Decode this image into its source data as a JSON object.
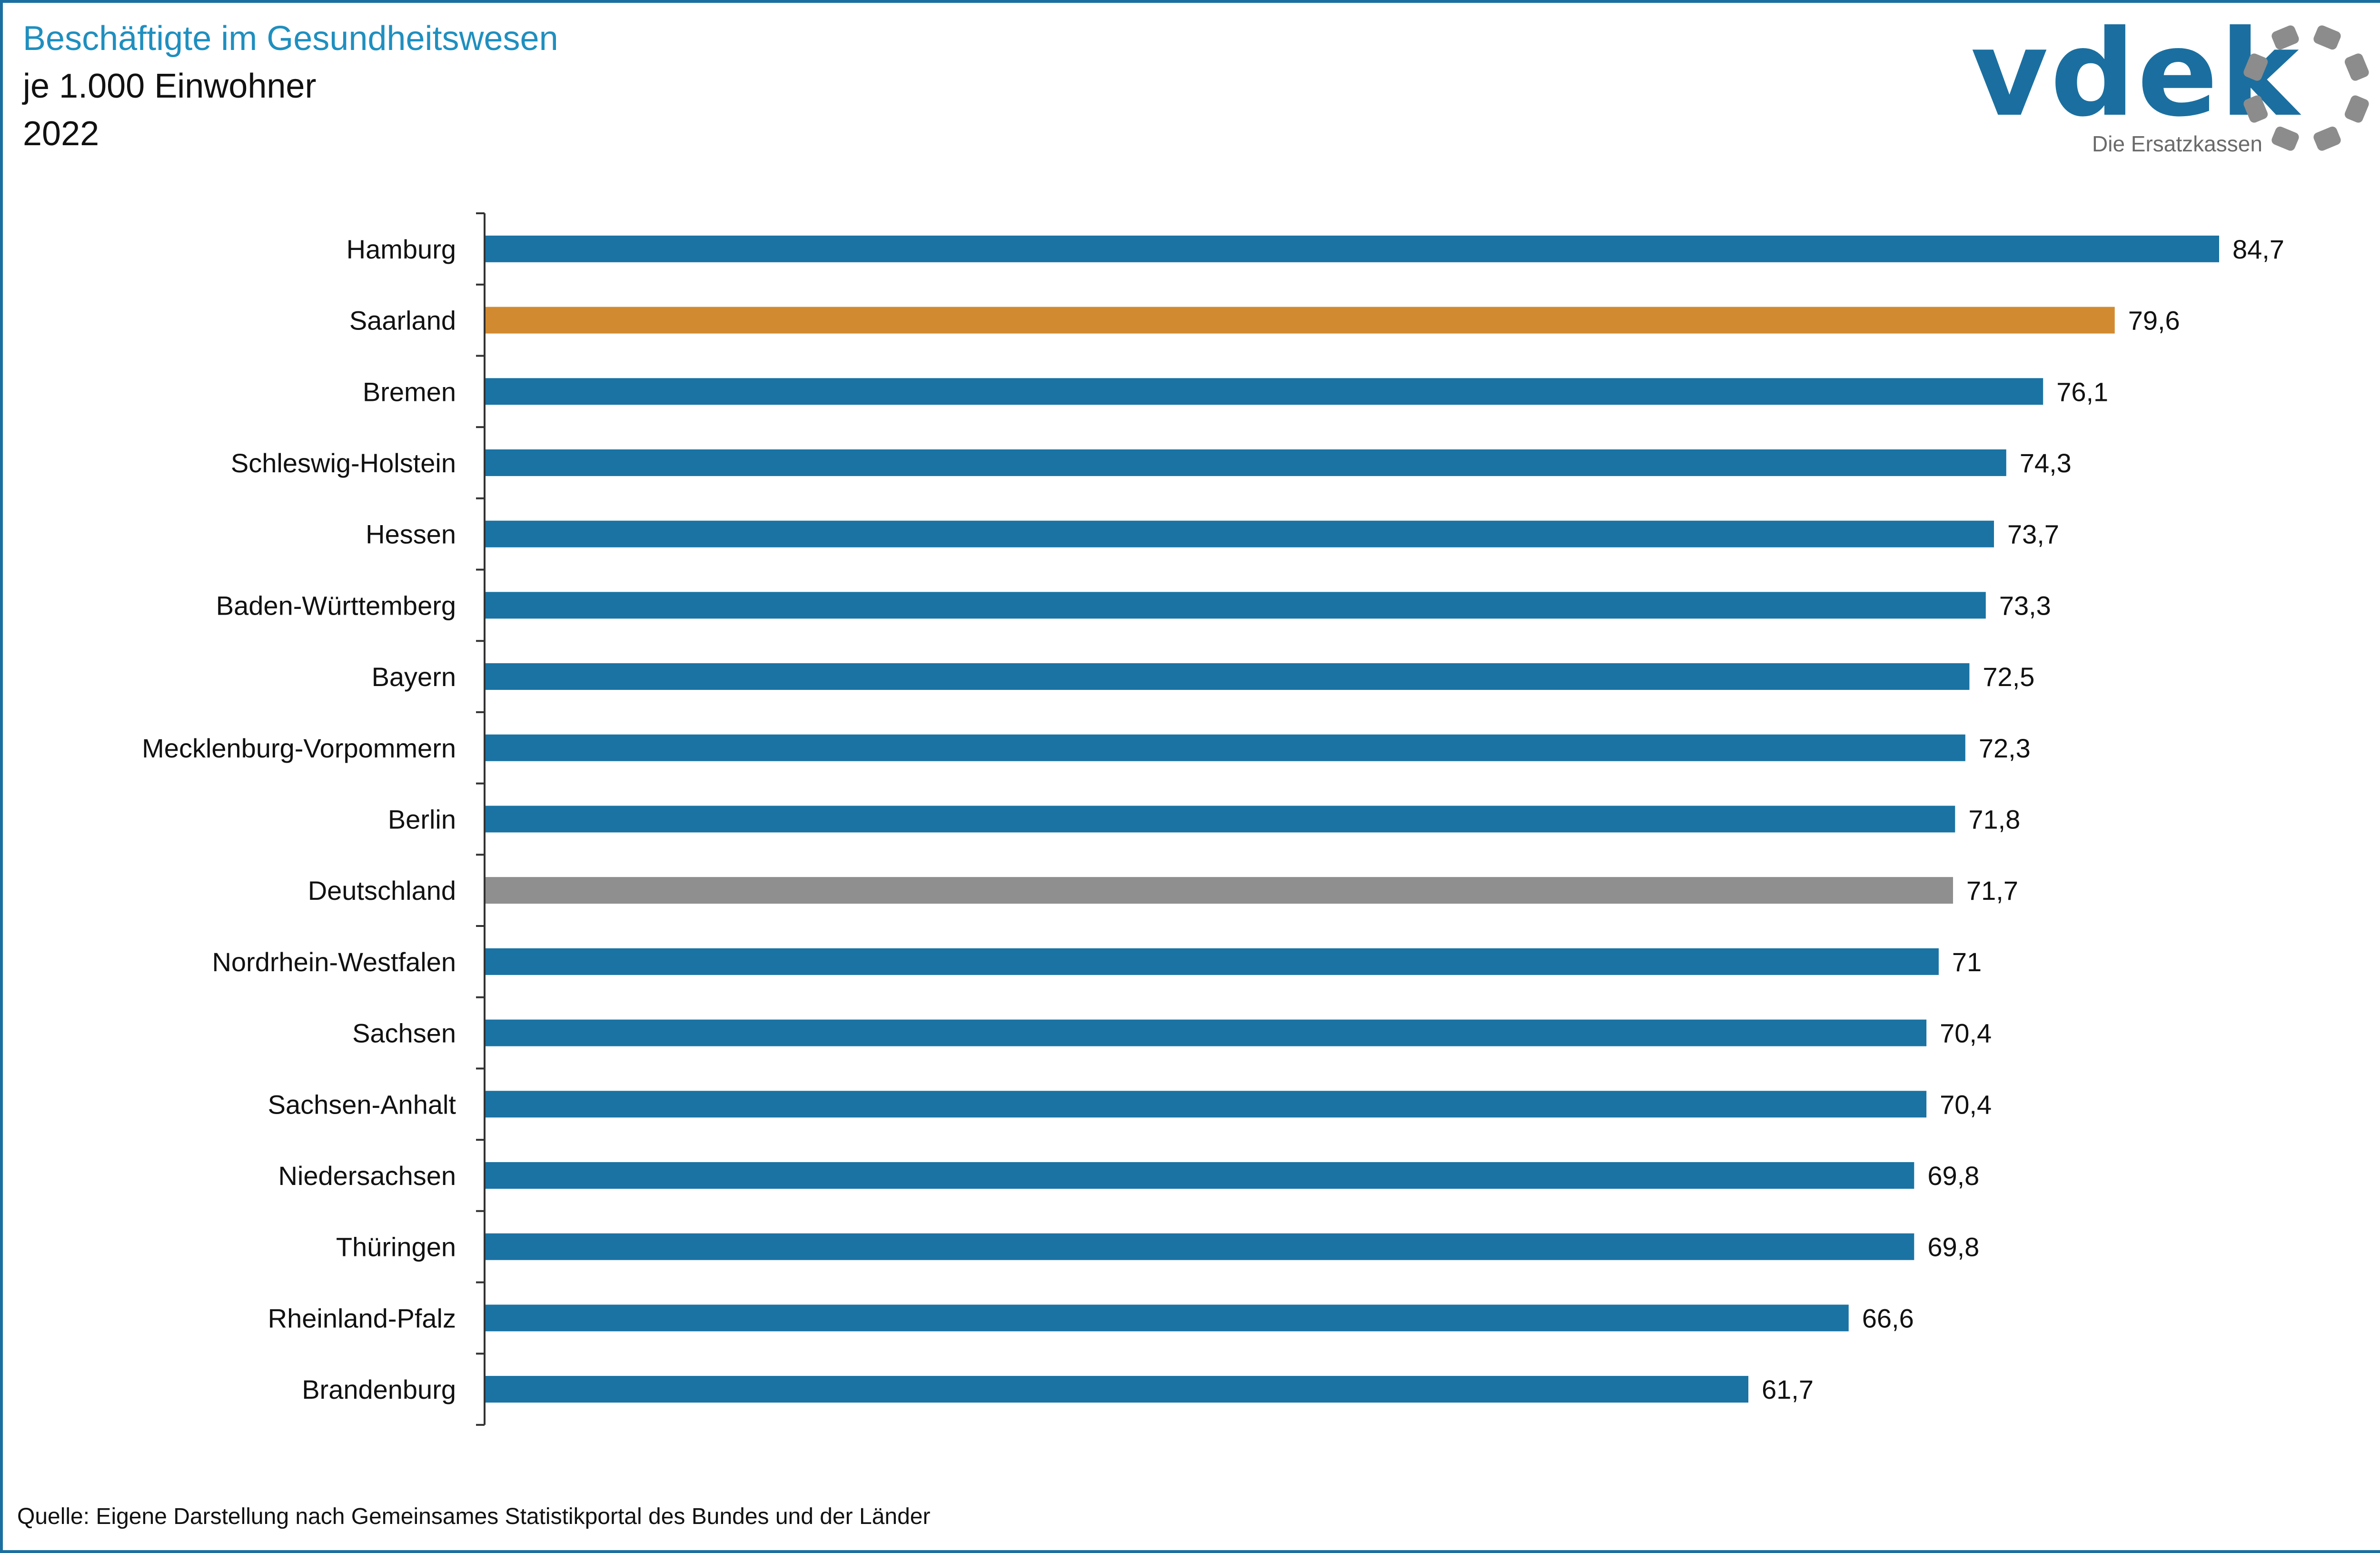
{
  "header": {
    "title": "Beschäftigte im Gesundheitswesen",
    "subtitle": "je 1.000 Einwohner",
    "year": "2022"
  },
  "logo": {
    "word": "vdek",
    "tagline": "Die Ersatzkassen",
    "color": "#1a6fa0",
    "ring_color": "#8c8c8c"
  },
  "footer": {
    "source": "Quelle: Eigene Darstellung nach Gemeinsames Statistikportal des Bundes und der Länder"
  },
  "colors": {
    "default": "#1a73a3",
    "highlight": "#d28a30",
    "national": "#8f8f8f"
  },
  "chart_data": {
    "type": "bar",
    "orientation": "horizontal",
    "xlim": [
      0,
      90
    ],
    "grid": false,
    "legend": "none",
    "categories": [
      "Hamburg",
      "Saarland",
      "Bremen",
      "Schleswig-Holstein",
      "Hessen",
      "Baden-Württemberg",
      "Bayern",
      "Mecklenburg-Vorpommern",
      "Berlin",
      "Deutschland",
      "Nordrhein-Westfalen",
      "Sachsen",
      "Sachsen-Anhalt",
      "Niedersachsen",
      "Thüringen",
      "Rheinland-Pfalz",
      "Brandenburg"
    ],
    "values": [
      84.7,
      79.6,
      76.1,
      74.3,
      73.7,
      73.3,
      72.5,
      72.3,
      71.8,
      71.7,
      71,
      70.4,
      70.4,
      69.8,
      69.8,
      66.6,
      61.7
    ],
    "value_labels": [
      "84,7",
      "79,6",
      "76,1",
      "74,3",
      "73,7",
      "73,3",
      "72,5",
      "72,3",
      "71,8",
      "71,7",
      "71",
      "70,4",
      "70,4",
      "69,8",
      "69,8",
      "66,6",
      "61,7"
    ],
    "bar_colors": [
      "default",
      "highlight",
      "default",
      "default",
      "default",
      "default",
      "default",
      "default",
      "default",
      "national",
      "default",
      "default",
      "default",
      "default",
      "default",
      "default",
      "default"
    ]
  }
}
